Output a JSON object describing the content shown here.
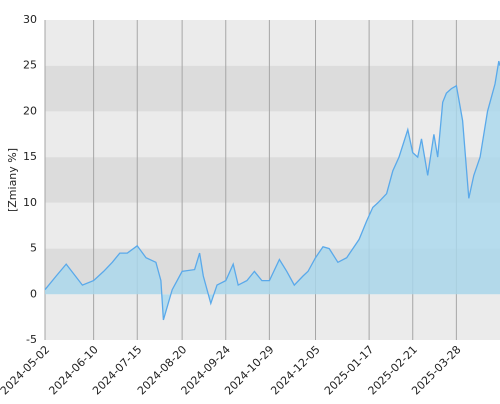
{
  "chart_data": {
    "type": "area",
    "y_label": "[Zmiany %]",
    "x": [
      "2024-05-02",
      "2024-05-11",
      "2024-05-19",
      "2024-06-01",
      "2024-06-10",
      "2024-06-18",
      "2024-06-25",
      "2024-07-01",
      "2024-07-07",
      "2024-07-15",
      "2024-07-22",
      "2024-07-30",
      "2024-08-03",
      "2024-08-05",
      "2024-08-12",
      "2024-08-20",
      "2024-08-30",
      "2024-09-03",
      "2024-09-06",
      "2024-09-12",
      "2024-09-17",
      "2024-09-24",
      "2024-09-30",
      "2024-10-04",
      "2024-10-11",
      "2024-10-17",
      "2024-10-23",
      "2024-10-29",
      "2024-11-06",
      "2024-11-12",
      "2024-11-18",
      "2024-11-25",
      "2024-11-29",
      "2024-12-05",
      "2024-12-11",
      "2024-12-16",
      "2024-12-23",
      "2024-12-30",
      "2025-01-09",
      "2025-01-15",
      "2025-01-20",
      "2025-01-24",
      "2025-01-31",
      "2025-02-05",
      "2025-02-10",
      "2025-02-17",
      "2025-02-21",
      "2025-02-25",
      "2025-02-28",
      "2025-03-05",
      "2025-03-10",
      "2025-03-13",
      "2025-03-17",
      "2025-03-20",
      "2025-03-24",
      "2025-03-28",
      "2025-04-02",
      "2025-04-07",
      "2025-04-11",
      "2025-04-16",
      "2025-04-22",
      "2025-04-28",
      "2025-05-01",
      "2025-05-02"
    ],
    "values": [
      0.5,
      2,
      3.3,
      1,
      1.5,
      2.5,
      3.5,
      4.5,
      4.5,
      5.3,
      4,
      3.5,
      1.5,
      -2.8,
      0.5,
      2.5,
      2.7,
      4.5,
      2,
      -1,
      1,
      1.5,
      3.3,
      1,
      1.5,
      2.5,
      1.5,
      1.5,
      3.8,
      2.5,
      1,
      2,
      2.5,
      4,
      5.2,
      5,
      3.5,
      4,
      6,
      8,
      9.5,
      10,
      11,
      13.5,
      15,
      18,
      15.5,
      15,
      17,
      13,
      17.5,
      15,
      21,
      22,
      22.5,
      22.8,
      19,
      10.5,
      13,
      15,
      20,
      23,
      25.5,
      25
    ],
    "color": "#5aa9ea",
    "fill_color": "#a9d8ee",
    "xlim": [
      "2024-05-02",
      "2025-05-02"
    ],
    "xticks": [
      "2024-05-02",
      "2024-06-10",
      "2024-07-15",
      "2024-08-20",
      "2024-09-24",
      "2024-10-29",
      "2024-12-05",
      "2025-01-17",
      "2025-02-21",
      "2025-03-28"
    ],
    "ylim": [
      -5,
      30
    ],
    "yticks": [
      30,
      25,
      20,
      15,
      10,
      5,
      0,
      -5
    ],
    "band_colors": [
      "#ebebeb",
      "#dcdcdc"
    ],
    "grid_color": "#a6a6a6"
  }
}
